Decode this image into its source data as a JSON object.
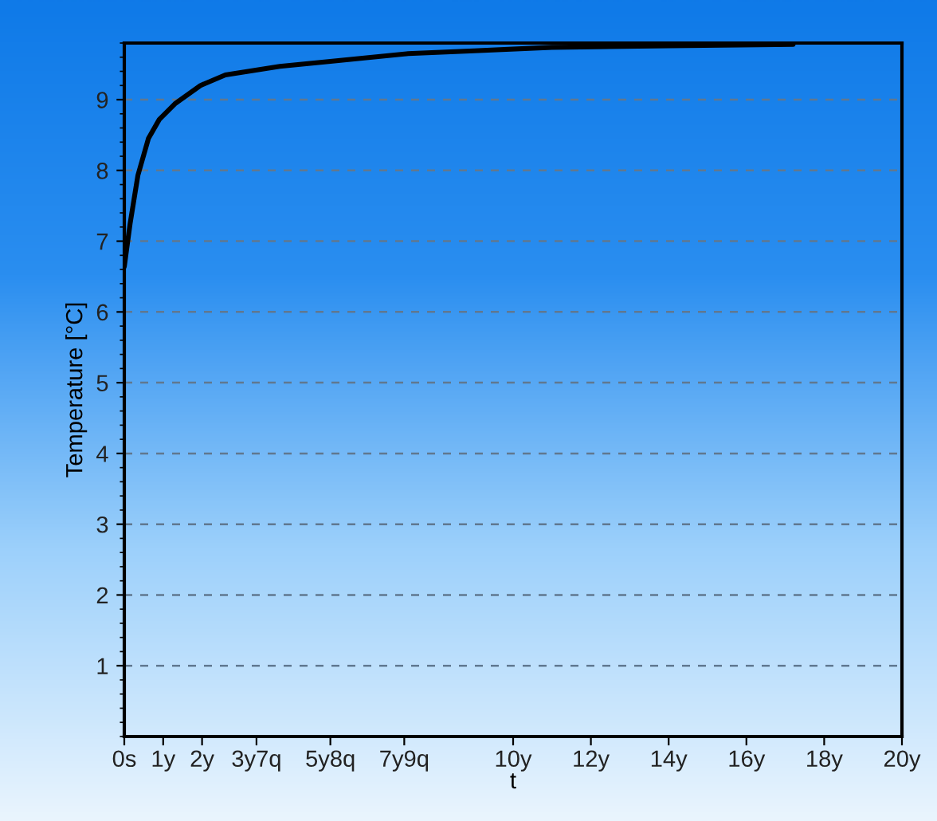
{
  "chart_data": {
    "type": "line",
    "xlabel": "t",
    "ylabel": "Temperature [°C]",
    "x": [
      0,
      0.15,
      0.35,
      0.62,
      0.9,
      1.3,
      1.96,
      2.6,
      4.0,
      5.3,
      7.3,
      9.0,
      11.0,
      14.0,
      17.2
    ],
    "series": [
      {
        "color": "#000000",
        "values": [
          6.64,
          7.25,
          7.93,
          8.45,
          8.72,
          8.94,
          9.2,
          9.35,
          9.47,
          9.54,
          9.65,
          9.69,
          9.74,
          9.76,
          9.78
        ]
      }
    ],
    "xlim": [
      0,
      20
    ],
    "ylim": [
      0,
      9.8
    ],
    "xticks": [
      {
        "value": 0,
        "label": "0s"
      },
      {
        "value": 1,
        "label": "1y"
      },
      {
        "value": 2,
        "label": "2y"
      },
      {
        "value": 3.4,
        "label": "3y7q"
      },
      {
        "value": 5.3,
        "label": "5y8q"
      },
      {
        "value": 7.2,
        "label": "7y9q"
      },
      {
        "value": 10,
        "label": "10y"
      },
      {
        "value": 12,
        "label": "12y"
      },
      {
        "value": 14,
        "label": "14y"
      },
      {
        "value": 16,
        "label": "16y"
      },
      {
        "value": 18,
        "label": "18y"
      },
      {
        "value": 20,
        "label": "20y"
      }
    ],
    "yticks": [
      1,
      2,
      3,
      4,
      5,
      6,
      7,
      8,
      9
    ],
    "grid": "y",
    "marker": "none",
    "line_style": "solid"
  }
}
